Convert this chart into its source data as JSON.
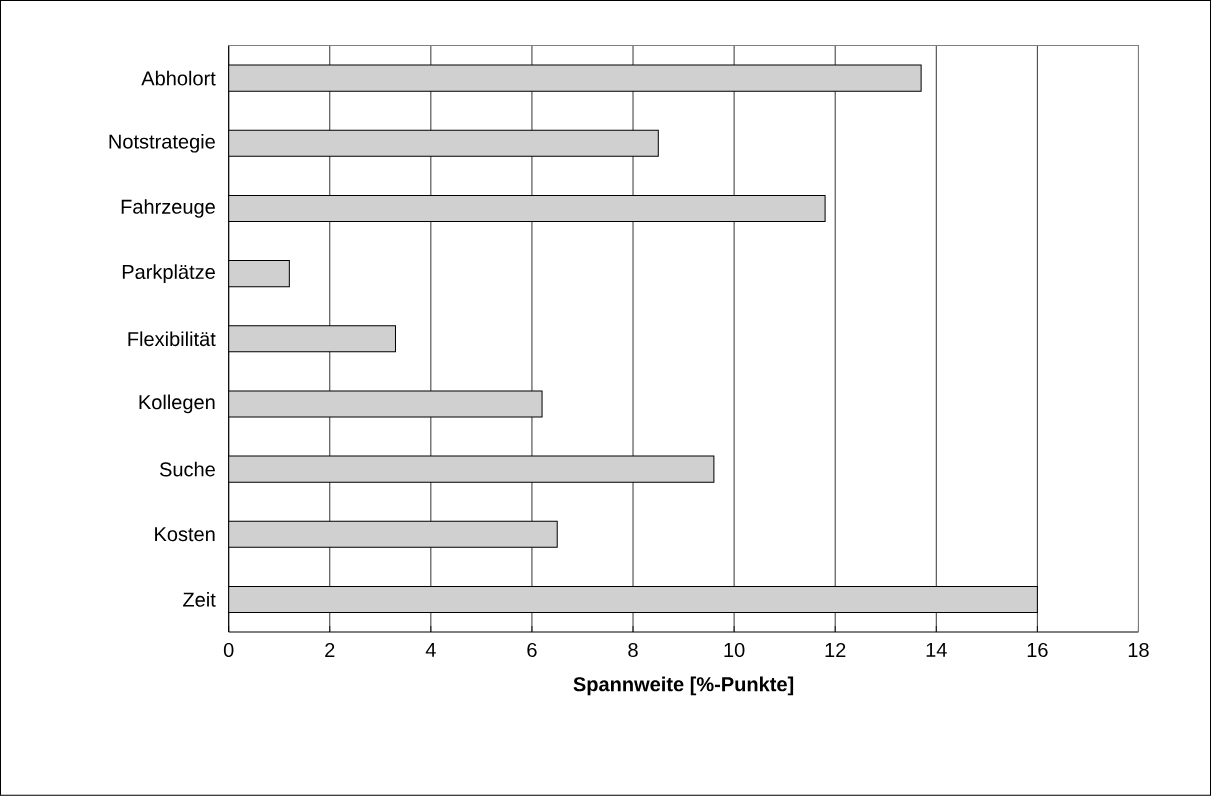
{
  "chart_data": {
    "type": "bar",
    "orientation": "horizontal",
    "xlabel": "**Spannweite [%-Punkte]**",
    "categories": [
      "Abholort",
      "Notstrategie",
      "Fahrzeuge",
      "Parkplätze",
      "Flexibilität",
      "Kollegen",
      "Suche",
      "Kosten",
      "Zeit"
    ],
    "values": [
      13.7,
      8.5,
      11.8,
      1.2,
      3.3,
      6.2,
      9.6,
      6.5,
      16.0
    ],
    "color": "#d0d0d0",
    "xlim": [
      0,
      18
    ],
    "xticks": [
      0,
      2,
      4,
      6,
      8,
      10,
      12,
      14,
      16,
      18
    ],
    "grid": "x"
  }
}
